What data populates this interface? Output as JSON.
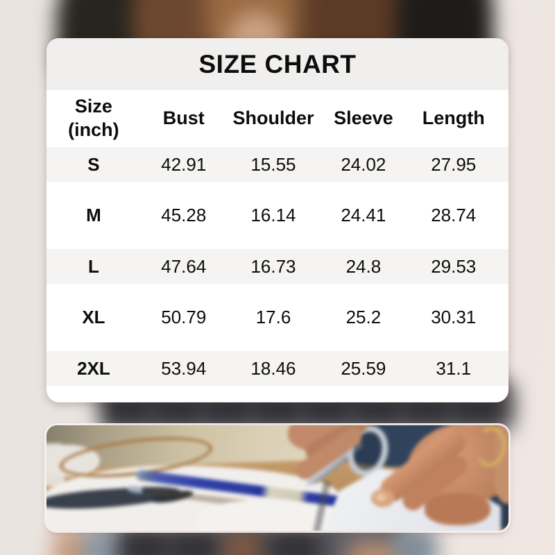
{
  "size_header": {
    "line1": "Size",
    "line2": "(inch)"
  },
  "chart_data": {
    "type": "table",
    "title": "SIZE CHART",
    "unit": "inch",
    "columns": [
      "Size (inch)",
      "Bust",
      "Shoulder",
      "Sleeve",
      "Length"
    ],
    "rows": [
      [
        "S",
        42.91,
        15.55,
        24.02,
        27.95
      ],
      [
        "M",
        45.28,
        16.14,
        24.41,
        28.74
      ],
      [
        "L",
        47.64,
        16.73,
        24.8,
        29.53
      ],
      [
        "XL",
        50.79,
        17.6,
        25.2,
        30.31
      ],
      [
        "2XL",
        53.94,
        18.46,
        25.59,
        31.1
      ]
    ]
  },
  "photo": {
    "alt": "hands cutting white fabric with scissors, blue pen and navy cloth on a wooden table"
  },
  "colors": {
    "card_bg": "#ffffff",
    "title_band": "#f0efee",
    "row_stripe": "#f5f4f2",
    "text": "#0d0d0d",
    "pen_blue": "#2f3fa6"
  }
}
